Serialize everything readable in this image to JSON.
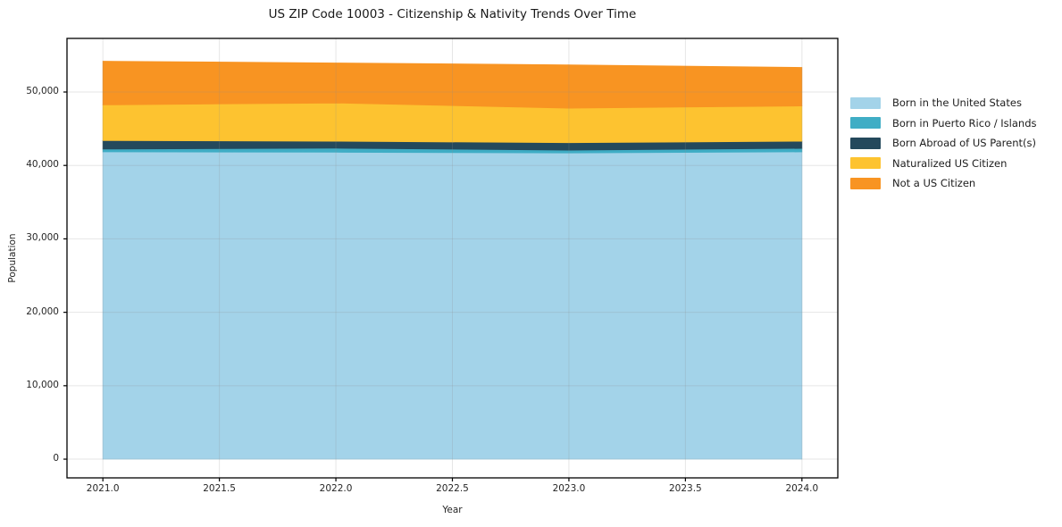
{
  "title": "US ZIP Code 10003 - Citizenship & Nativity Trends Over Time",
  "xlabel": "Year",
  "ylabel": "Population",
  "chart_data": {
    "type": "area",
    "stacked": true,
    "title": "US ZIP Code 10003 - Citizenship & Nativity Trends Over Time",
    "xlabel": "Year",
    "ylabel": "Population",
    "x": [
      2021,
      2022,
      2023,
      2024
    ],
    "series": [
      {
        "name": "Born in the United States",
        "color": "#a3d3e9",
        "values": [
          41850,
          41800,
          41700,
          41850
        ]
      },
      {
        "name": "Born in Puerto Rico / Islands",
        "color": "#3fadc5",
        "values": [
          380,
          550,
          380,
          480
        ]
      },
      {
        "name": "Born Abroad of US Parent(s)",
        "color": "#24495c",
        "values": [
          1170,
          950,
          1020,
          970
        ]
      },
      {
        "name": "Naturalized US Citizen",
        "color": "#fdc330",
        "values": [
          4850,
          5200,
          4700,
          4800
        ]
      },
      {
        "name": "Not a US Citizen",
        "color": "#f89422",
        "values": [
          5950,
          5450,
          5900,
          5250
        ]
      }
    ],
    "stack_totals": [
      54200,
      53950,
      53700,
      53350
    ],
    "xticks": [
      2021.0,
      2021.5,
      2022.0,
      2022.5,
      2023.0,
      2023.5,
      2024.0
    ],
    "xtick_labels": [
      "2021.0",
      "2021.5",
      "2022.0",
      "2022.5",
      "2023.0",
      "2023.5",
      "2024.0"
    ],
    "yticks": [
      0,
      10000,
      20000,
      30000,
      40000,
      50000
    ],
    "ytick_labels": [
      "0",
      "10,000",
      "20,000",
      "30,000",
      "40,000",
      "50,000"
    ],
    "xlim": [
      2020.846,
      2024.154
    ],
    "ylim": [
      -2550,
      57300
    ],
    "grid": true,
    "legend_position": "right",
    "background_color": "#ffffff",
    "spine_color": "#000000"
  }
}
